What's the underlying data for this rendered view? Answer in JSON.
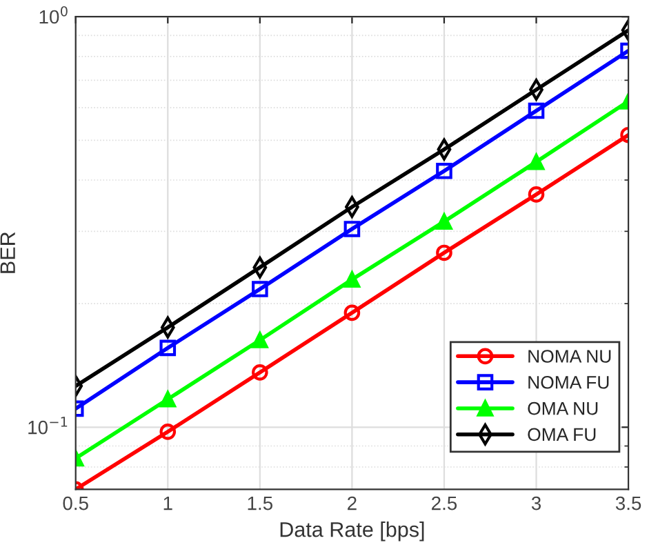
{
  "chart_data": {
    "type": "line",
    "xlabel": "Data Rate [bps]",
    "ylabel": "BER",
    "x": [
      0.5,
      1,
      1.5,
      2,
      2.5,
      3,
      3.5
    ],
    "series": [
      {
        "name": "NOMA NU",
        "color": "#ff0000",
        "marker": "circle",
        "values": [
          0.0706,
          0.0975,
          0.136,
          0.19,
          0.266,
          0.369,
          0.515
        ]
      },
      {
        "name": "NOMA FU",
        "color": "#0000ff",
        "marker": "square",
        "values": [
          0.111,
          0.156,
          0.217,
          0.304,
          0.421,
          0.59,
          0.826
        ]
      },
      {
        "name": "OMA NU",
        "color": "#00ff00",
        "marker": "triangle",
        "values": [
          0.084,
          0.117,
          0.163,
          0.229,
          0.317,
          0.443,
          0.622
        ]
      },
      {
        "name": "OMA FU",
        "color": "#000000",
        "marker": "diamond",
        "values": [
          0.126,
          0.175,
          0.245,
          0.344,
          0.475,
          0.664,
          0.927
        ]
      }
    ],
    "log": "y",
    "xlim": [
      0.5,
      3.5
    ],
    "xticks": [
      0.5,
      1,
      1.5,
      2,
      2.5,
      3,
      3.5
    ],
    "ylim": [
      0.0706,
      1
    ],
    "yticks": [
      {
        "value": 0.1,
        "label": "10$^{−1}$"
      },
      {
        "value": 1,
        "label": "10$^{0}$"
      }
    ],
    "grid": true,
    "legend": "lower right",
    "line_style": "solid"
  }
}
